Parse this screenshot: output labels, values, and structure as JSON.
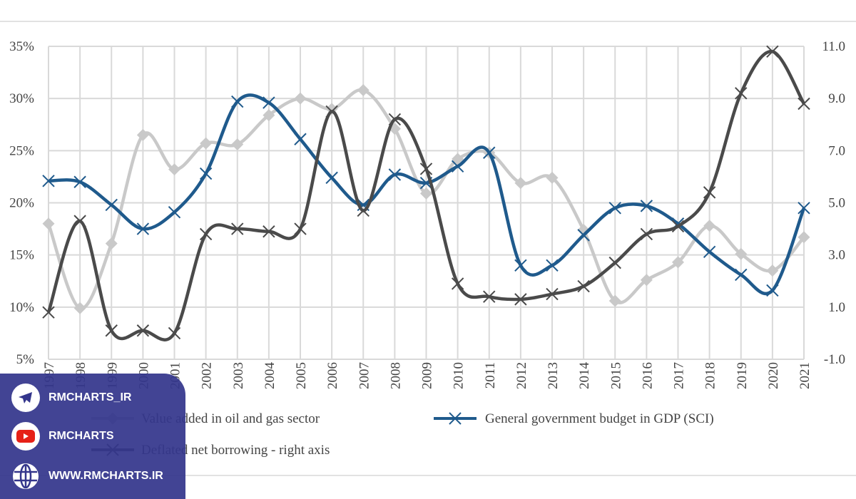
{
  "chart_data": {
    "type": "line",
    "smoothed": true,
    "grid": true,
    "legend_placement": "bottom",
    "categories": [
      "1997",
      "1998",
      "1999",
      "2000",
      "2001",
      "2002",
      "2003",
      "2004",
      "2005",
      "2006",
      "2007",
      "2008",
      "2009",
      "2010",
      "2011",
      "2012",
      "2013",
      "2014",
      "2015",
      "2016",
      "2017",
      "2018",
      "2019",
      "2020",
      "2021"
    ],
    "left_axis": {
      "ylim": [
        5,
        35
      ],
      "ticks": [
        "5%",
        "10%",
        "15%",
        "20%",
        "25%",
        "30%",
        "35%"
      ]
    },
    "right_axis": {
      "ylim": [
        -1,
        11
      ],
      "ticks": [
        "-1.0",
        "1.0",
        "3.0",
        "5.0",
        "7.0",
        "9.0",
        "11.0"
      ]
    },
    "series": [
      {
        "name": "Value added in oil and gas sector",
        "axis": "left",
        "marker": "diamond",
        "color": "#c9c9c9",
        "values": [
          18.0,
          9.9,
          16.1,
          26.5,
          23.2,
          25.7,
          25.6,
          28.4,
          30.0,
          29.0,
          30.8,
          27.1,
          20.9,
          24.2,
          24.8,
          21.9,
          22.4,
          17.4,
          10.6,
          12.6,
          14.3,
          17.8,
          15.1,
          13.5,
          16.7
        ]
      },
      {
        "name": "General government budget in GDP (SCI)",
        "axis": "left",
        "marker": "x",
        "color": "#1f5a8c",
        "values": [
          22.1,
          22.0,
          19.8,
          17.5,
          19.1,
          22.8,
          29.7,
          29.6,
          26.1,
          22.4,
          19.8,
          22.7,
          21.9,
          23.5,
          24.8,
          14.0,
          14.0,
          16.9,
          19.5,
          19.7,
          18.0,
          15.3,
          13.1,
          11.6,
          19.5
        ]
      },
      {
        "name": "Deflated net borrowing - right axis",
        "axis": "right",
        "marker": "x",
        "color": "#4a4a4a",
        "values": [
          0.8,
          4.3,
          0.1,
          0.1,
          0.0,
          3.8,
          4.0,
          3.9,
          4.0,
          8.5,
          4.7,
          8.2,
          6.3,
          1.9,
          1.4,
          1.3,
          1.5,
          1.8,
          2.7,
          3.8,
          4.1,
          5.4,
          9.2,
          10.8,
          8.8
        ]
      }
    ]
  },
  "watermark": {
    "telegram": "RMCHARTS_IR",
    "youtube": "RMCHARTS",
    "website": "WWW.RMCHARTS.IR"
  }
}
